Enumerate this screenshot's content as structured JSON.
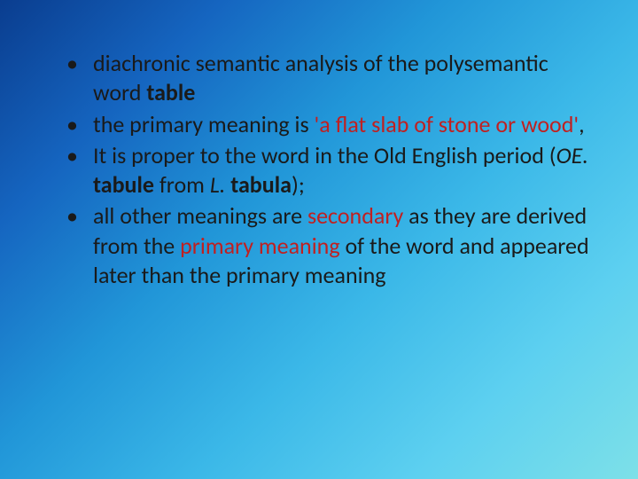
{
  "slide": {
    "background": {
      "gradient_type": "linear",
      "gradient_angle": 135,
      "gradient_stops": [
        "#0a3d8f",
        "#1565c0",
        "#2196d8",
        "#3bb8e8",
        "#5dd0f0",
        "#7de0e8"
      ]
    },
    "text_color": "#1a1a1a",
    "highlight_color": "#c02020",
    "font_family": "Calibri",
    "font_size": 26,
    "bullets": [
      {
        "b1_t1": "diachronic semantic analysis of the polysemantic word ",
        "b1_t2": "table"
      },
      {
        "b2_t1": "the primary meaning is ",
        "b2_t2": "'a flat slab of stone or wood'",
        "b2_t3": ","
      },
      {
        "b3_t1": "It  is proper to the word in the Old English period (",
        "b3_t2": "OE.",
        "b3_t3": " ",
        "b3_t4": "tabule ",
        "b3_t5": "from ",
        "b3_t6": "L.",
        "b3_t7": " ",
        "b3_t8": "tabula",
        "b3_t9": ");"
      },
      {
        "b4_t1": "all other meanings are ",
        "b4_t2": "secondary",
        "b4_t3": " as they are derived from the ",
        "b4_t4": "primary meaning",
        "b4_t5": " of the word and appeared later than the primary meaning"
      }
    ]
  }
}
